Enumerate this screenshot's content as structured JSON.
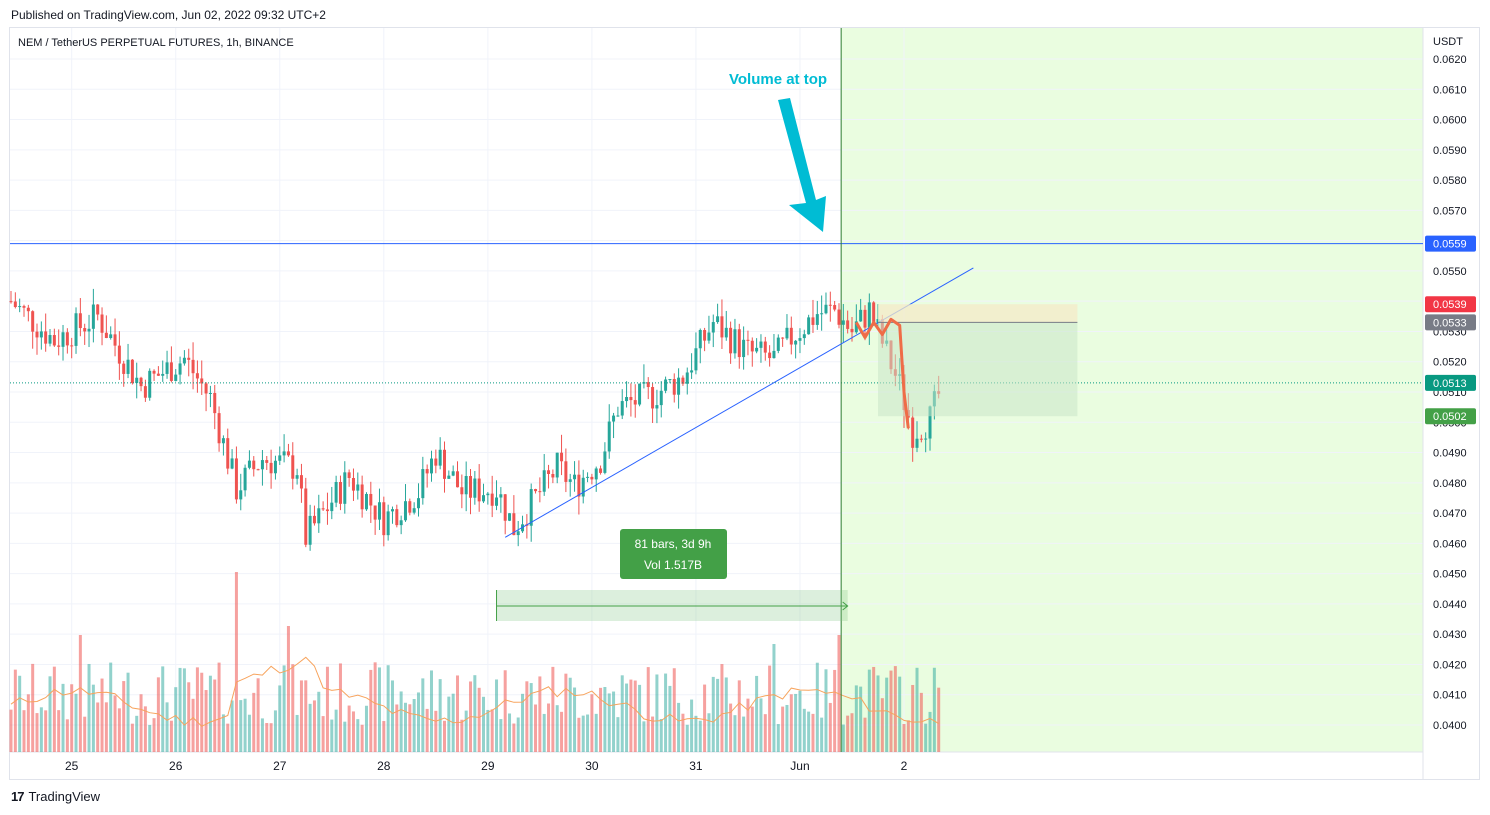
{
  "header": {
    "published": "Published on TradingView.com, Jun 02, 2022 09:32 UTC+2"
  },
  "footer": {
    "brand": "TradingView",
    "logo_icon": "tradingview-logo-icon"
  },
  "chart_data": {
    "type": "candlestick",
    "title": "NEM / TetherUS PERPETUAL FUTURES, 1h, BINANCE",
    "currency": "USDT",
    "ylim": [
      0.0392,
      0.0631
    ],
    "y_ticks": [
      "0.0620",
      "0.0610",
      "0.0600",
      "0.0590",
      "0.0580",
      "0.0570",
      "0.0560",
      "0.0550",
      "0.0540",
      "0.0530",
      "0.0520",
      "0.0510",
      "0.0500",
      "0.0490",
      "0.0480",
      "0.0470",
      "0.0460",
      "0.0450",
      "0.0440",
      "0.0430",
      "0.0420",
      "0.0410",
      "0.0400"
    ],
    "x_ticks": [
      "25",
      "26",
      "27",
      "28",
      "29",
      "30",
      "31",
      "Jun",
      "2"
    ],
    "bars_total": 215,
    "price_labels": [
      {
        "value": 0.0559,
        "text": "0.0559",
        "color": "#2962ff"
      },
      {
        "value": 0.0539,
        "text": "0.0539",
        "color": "#f23645"
      },
      {
        "value": 0.0533,
        "text": "0.0533",
        "color": "#787b86"
      },
      {
        "value": 0.0513,
        "text": "0.0513",
        "color": "#089981"
      },
      {
        "value": 0.0502,
        "text": "0.0502",
        "color": "#43a047"
      }
    ],
    "horizontal_line": 0.0559,
    "last_price": 0.0513,
    "annotations": {
      "volume_note": "Volume at top",
      "range_box_line1": "81 bars, 3d 9h",
      "range_box_line2": "Vol 1.517B"
    },
    "trendline": {
      "from": {
        "bar": 114,
        "price": 0.0462
      },
      "to": {
        "bar": 222,
        "price": 0.0551
      }
    },
    "candles_key": [
      {
        "bar": 0,
        "price": 0.054
      },
      {
        "bar": 10,
        "price": 0.0527
      },
      {
        "bar": 20,
        "price": 0.0535
      },
      {
        "bar": 30,
        "price": 0.0512
      },
      {
        "bar": 40,
        "price": 0.0521
      },
      {
        "bar": 46,
        "price": 0.0508
      },
      {
        "bar": 52,
        "price": 0.0478
      },
      {
        "bar": 58,
        "price": 0.0488
      },
      {
        "bar": 66,
        "price": 0.0485
      },
      {
        "bar": 68,
        "price": 0.0462
      },
      {
        "bar": 78,
        "price": 0.0482
      },
      {
        "bar": 86,
        "price": 0.0468
      },
      {
        "bar": 94,
        "price": 0.0477
      },
      {
        "bar": 98,
        "price": 0.049
      },
      {
        "bar": 104,
        "price": 0.0477
      },
      {
        "bar": 112,
        "price": 0.0478
      },
      {
        "bar": 116,
        "price": 0.0465
      },
      {
        "bar": 126,
        "price": 0.0485
      },
      {
        "bar": 130,
        "price": 0.0479
      },
      {
        "bar": 136,
        "price": 0.0488
      },
      {
        "bar": 140,
        "price": 0.0505
      },
      {
        "bar": 148,
        "price": 0.0509
      },
      {
        "bar": 155,
        "price": 0.0515
      },
      {
        "bar": 162,
        "price": 0.0533
      },
      {
        "bar": 170,
        "price": 0.0523
      },
      {
        "bar": 176,
        "price": 0.0521
      },
      {
        "bar": 180,
        "price": 0.0528
      },
      {
        "bar": 186,
        "price": 0.0536
      },
      {
        "bar": 190,
        "price": 0.0537
      },
      {
        "bar": 194,
        "price": 0.053
      },
      {
        "bar": 198,
        "price": 0.0537
      }
    ],
    "forecast_path": [
      {
        "bar": 195,
        "price": 0.0533
      },
      {
        "bar": 197,
        "price": 0.0528
      },
      {
        "bar": 199,
        "price": 0.0533
      },
      {
        "bar": 201,
        "price": 0.0529
      },
      {
        "bar": 203,
        "price": 0.0534
      },
      {
        "bar": 205,
        "price": 0.0532
      },
      {
        "bar": 206,
        "price": 0.051
      },
      {
        "bar": 207,
        "price": 0.0498
      }
    ],
    "candles_tail": [
      {
        "bar": 200,
        "price": 0.053
      },
      {
        "bar": 205,
        "price": 0.0512
      },
      {
        "bar": 208,
        "price": 0.0497
      },
      {
        "bar": 212,
        "price": 0.0501
      },
      {
        "bar": 215,
        "price": 0.0513
      }
    ],
    "volume_peaks": [
      {
        "bar": 52,
        "value": 1.0
      },
      {
        "bar": 64,
        "value": 0.7
      },
      {
        "bar": 16,
        "value": 0.65
      },
      {
        "bar": 176,
        "value": 0.6
      },
      {
        "bar": 191,
        "value": 0.65
      }
    ]
  }
}
